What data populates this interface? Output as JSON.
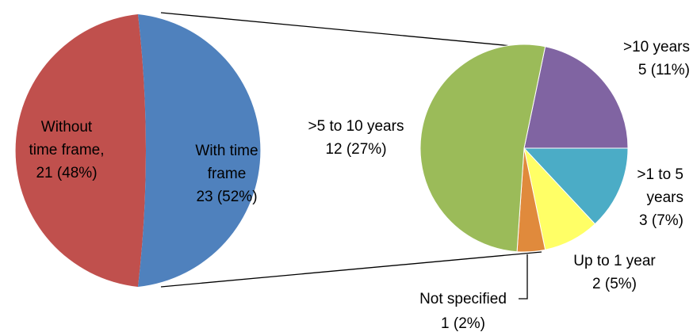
{
  "chart_data": [
    {
      "type": "pie",
      "role": "main",
      "slices": [
        {
          "label_lines": [
            "Without",
            "time frame,",
            "21 (48%)"
          ],
          "value": 21,
          "percent": 48,
          "color": "#c0504d"
        },
        {
          "label_lines": [
            "With time",
            "frame",
            "23 (52%)"
          ],
          "value": 23,
          "percent": 52,
          "color": "#4f81bd"
        }
      ]
    },
    {
      "type": "pie",
      "role": "breakdown",
      "of": "With time frame",
      "slices": [
        {
          "label_lines": [
            ">10 years",
            "5 (11%)"
          ],
          "value": 5,
          "percent": 11,
          "color": "#8064a2"
        },
        {
          "label_lines": [
            ">1 to 5",
            "years",
            "3 (7%)"
          ],
          "value": 3,
          "percent": 7,
          "color": "#4bacc6"
        },
        {
          "label_lines": [
            "Up to 1 year",
            "2 (5%)"
          ],
          "value": 2,
          "percent": 5,
          "color": "#ffff66"
        },
        {
          "label_lines": [
            "Not specified",
            "1 (2%)"
          ],
          "value": 1,
          "percent": 2,
          "color": "#e08a3c"
        },
        {
          "label_lines": [
            ">5 to 10 years",
            "12 (27%)"
          ],
          "value": 12,
          "percent": 27,
          "color": "#9bbb59"
        }
      ]
    }
  ]
}
